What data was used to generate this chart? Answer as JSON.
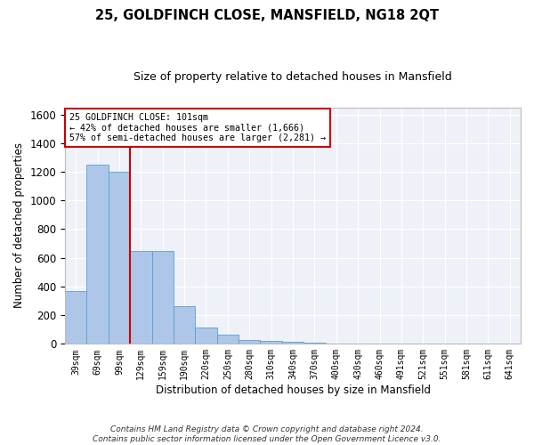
{
  "title": "25, GOLDFINCH CLOSE, MANSFIELD, NG18 2QT",
  "subtitle": "Size of property relative to detached houses in Mansfield",
  "xlabel": "Distribution of detached houses by size in Mansfield",
  "ylabel": "Number of detached properties",
  "categories": [
    "39sqm",
    "69sqm",
    "99sqm",
    "129sqm",
    "159sqm",
    "190sqm",
    "220sqm",
    "250sqm",
    "280sqm",
    "310sqm",
    "340sqm",
    "370sqm",
    "400sqm",
    "430sqm",
    "460sqm",
    "491sqm",
    "521sqm",
    "551sqm",
    "581sqm",
    "611sqm",
    "641sqm"
  ],
  "values": [
    370,
    1250,
    1200,
    650,
    650,
    265,
    115,
    65,
    30,
    20,
    15,
    10,
    5,
    5,
    5,
    5,
    5,
    5,
    5,
    5,
    5
  ],
  "bar_color": "#aec6e8",
  "bar_edge_color": "#5a9fd4",
  "vline_color": "#cc0000",
  "annotation_text_line1": "25 GOLDFINCH CLOSE: 101sqm",
  "annotation_text_line2": "← 42% of detached houses are smaller (1,666)",
  "annotation_text_line3": "57% of semi-detached houses are larger (2,281) →",
  "annotation_box_color": "#ffffff",
  "annotation_box_edge": "#cc0000",
  "ylim": [
    0,
    1650
  ],
  "yticks": [
    0,
    200,
    400,
    600,
    800,
    1000,
    1200,
    1400,
    1600
  ],
  "background_color": "#eef2f8",
  "grid_color": "#ffffff",
  "fig_facecolor": "#ffffff",
  "footnote_line1": "Contains HM Land Registry data © Crown copyright and database right 2024.",
  "footnote_line2": "Contains public sector information licensed under the Open Government Licence v3.0."
}
